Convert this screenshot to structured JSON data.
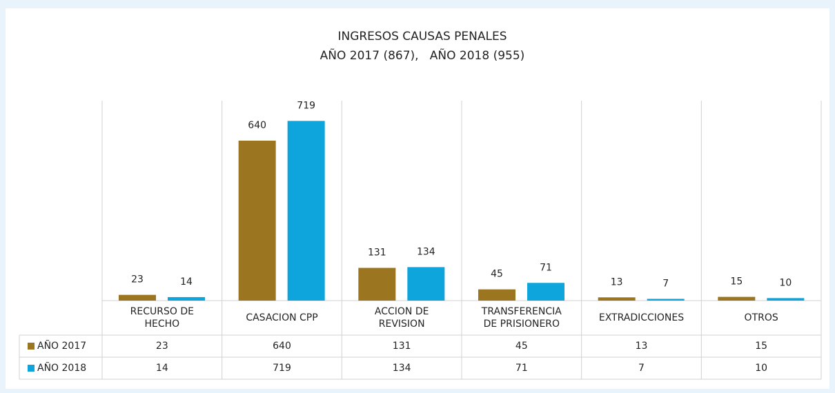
{
  "chart_data": {
    "type": "bar",
    "title": "INGRESOS CAUSAS PENALES",
    "subtitle": "AÑO 2017 (867),   AÑO 2018 (955)",
    "categories": [
      "RECURSO DE HECHO",
      "CASACION CPP",
      "ACCION DE REVISION",
      "TRANSFERENCIA DE PRISIONERO",
      "EXTRADICCIONES",
      "OTROS"
    ],
    "series": [
      {
        "name": "AÑO 2017",
        "color": "#9c7520",
        "values": [
          23,
          640,
          131,
          45,
          13,
          15
        ]
      },
      {
        "name": "AÑO 2018",
        "color": "#0ea5dd",
        "values": [
          14,
          719,
          134,
          71,
          7,
          10
        ]
      }
    ],
    "ylim": [
      0,
      800
    ]
  }
}
